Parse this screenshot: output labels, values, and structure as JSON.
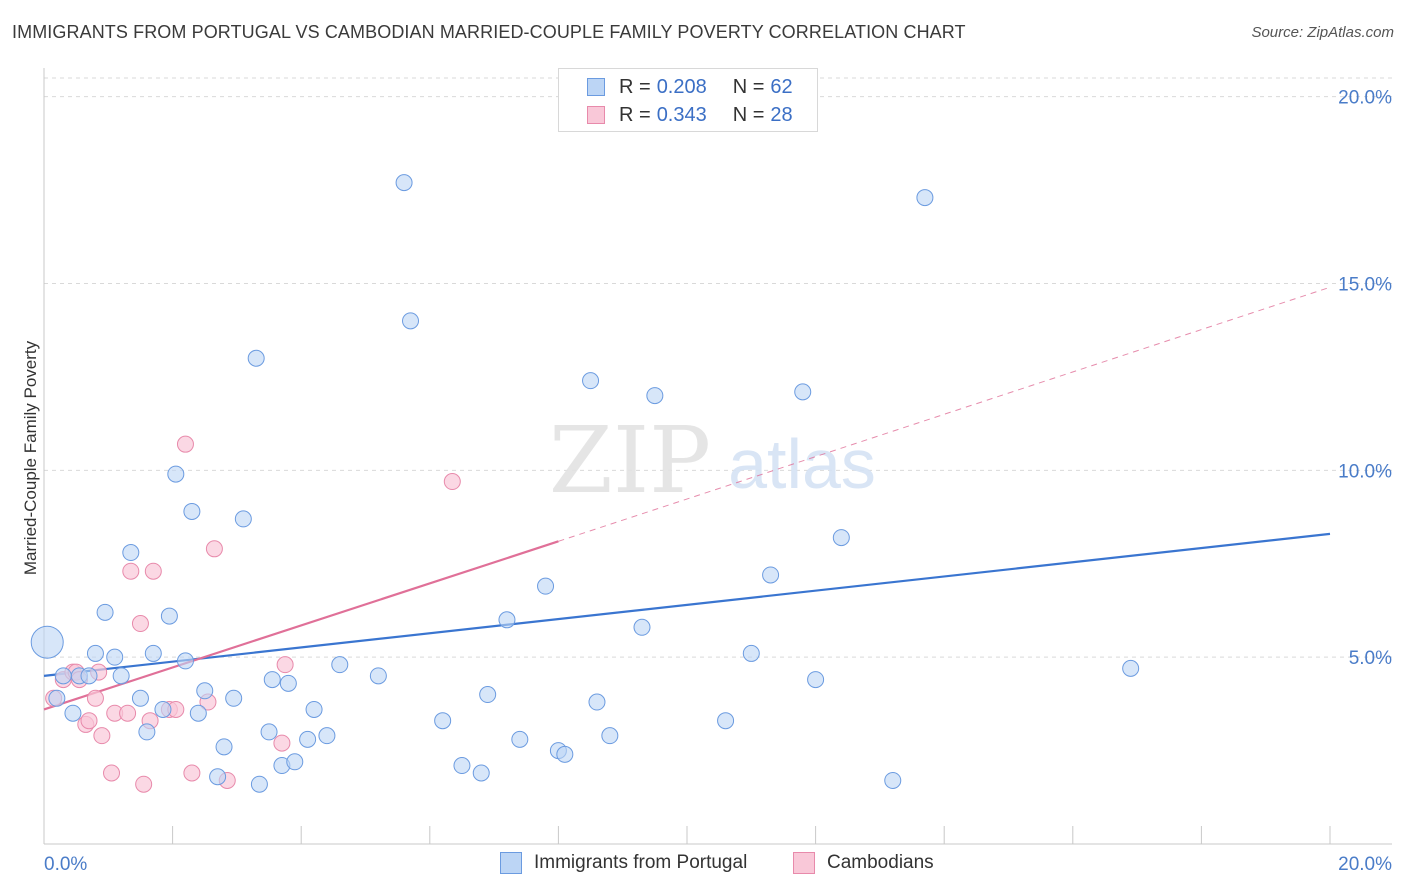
{
  "title": "IMMIGRANTS FROM PORTUGAL VS CAMBODIAN MARRIED-COUPLE FAMILY POVERTY CORRELATION CHART",
  "source": "Source: ZipAtlas.com",
  "watermark": {
    "zip": "ZIP",
    "atlas": "atlas"
  },
  "legend": {
    "rows": [
      {
        "r_label": "R =",
        "r_value": "0.208",
        "n_label": "N =",
        "n_value": "62"
      },
      {
        "r_label": "R =",
        "r_value": "0.343",
        "n_label": "N =",
        "n_value": "28"
      }
    ]
  },
  "bottom_legend": {
    "series1": "Immigrants from Portugal",
    "series2": "Cambodians"
  },
  "colors": {
    "blue_fill": "#bcd5f5",
    "blue_stroke": "#6b9be0",
    "blue_line": "#3a75d0",
    "pink_fill": "#f9c8d8",
    "pink_stroke": "#e88aab",
    "pink_line": "#e07098",
    "grid": "#d9d9d9",
    "label": "#4a7cc8"
  },
  "chart_data": {
    "type": "scatter",
    "title": "IMMIGRANTS FROM PORTUGAL VS CAMBODIAN MARRIED-COUPLE FAMILY POVERTY CORRELATION CHART",
    "xlabel": "",
    "ylabel": "Married-Couple Family Poverty",
    "xlim": [
      0,
      20
    ],
    "ylim": [
      0,
      20.5
    ],
    "x_tick_labels": [
      "0.0%",
      "20.0%"
    ],
    "y_ticks": [
      5,
      10,
      15,
      20
    ],
    "y_tick_labels": [
      "5.0%",
      "10.0%",
      "15.0%",
      "20.0%"
    ],
    "series": [
      {
        "name": "Immigrants from Portugal",
        "R": 0.208,
        "N": 62,
        "trend": {
          "x": [
            0,
            20
          ],
          "y": [
            4.5,
            8.3
          ]
        },
        "points": [
          [
            0.05,
            5.4,
            16
          ],
          [
            0.2,
            3.9,
            8
          ],
          [
            0.3,
            4.5,
            8
          ],
          [
            0.45,
            3.5,
            8
          ],
          [
            0.55,
            4.5,
            8
          ],
          [
            0.7,
            4.5,
            8
          ],
          [
            0.8,
            5.1,
            8
          ],
          [
            0.95,
            6.2,
            8
          ],
          [
            1.1,
            5.0,
            8
          ],
          [
            1.2,
            4.5,
            8
          ],
          [
            1.35,
            7.8,
            8
          ],
          [
            1.5,
            3.9,
            8
          ],
          [
            1.6,
            3.0,
            8
          ],
          [
            1.7,
            5.1,
            8
          ],
          [
            1.85,
            3.6,
            8
          ],
          [
            1.95,
            6.1,
            8
          ],
          [
            2.05,
            9.9,
            8
          ],
          [
            2.2,
            4.9,
            8
          ],
          [
            2.3,
            8.9,
            8
          ],
          [
            2.4,
            3.5,
            8
          ],
          [
            2.5,
            4.1,
            8
          ],
          [
            2.7,
            1.8,
            8
          ],
          [
            2.8,
            2.6,
            8
          ],
          [
            2.95,
            3.9,
            8
          ],
          [
            3.1,
            8.7,
            8
          ],
          [
            3.3,
            13.0,
            8
          ],
          [
            3.35,
            1.6,
            8
          ],
          [
            3.5,
            3.0,
            8
          ],
          [
            3.55,
            4.4,
            8
          ],
          [
            3.7,
            2.1,
            8
          ],
          [
            3.8,
            4.3,
            8
          ],
          [
            3.9,
            2.2,
            8
          ],
          [
            4.1,
            2.8,
            8
          ],
          [
            4.2,
            3.6,
            8
          ],
          [
            4.4,
            2.9,
            8
          ],
          [
            4.6,
            4.8,
            8
          ],
          [
            5.2,
            4.5,
            8
          ],
          [
            5.6,
            17.7,
            8
          ],
          [
            5.7,
            14.0,
            8
          ],
          [
            6.2,
            3.3,
            8
          ],
          [
            6.5,
            2.1,
            8
          ],
          [
            6.8,
            1.9,
            8
          ],
          [
            6.9,
            4.0,
            8
          ],
          [
            7.2,
            6.0,
            8
          ],
          [
            7.4,
            2.8,
            8
          ],
          [
            7.8,
            6.9,
            8
          ],
          [
            8.0,
            2.5,
            8
          ],
          [
            8.1,
            2.4,
            8
          ],
          [
            8.5,
            12.4,
            8
          ],
          [
            8.6,
            3.8,
            8
          ],
          [
            8.8,
            2.9,
            8
          ],
          [
            9.3,
            5.8,
            8
          ],
          [
            9.5,
            12.0,
            8
          ],
          [
            10.6,
            3.3,
            8
          ],
          [
            11.0,
            5.1,
            8
          ],
          [
            11.3,
            7.2,
            8
          ],
          [
            11.8,
            12.1,
            8
          ],
          [
            12.0,
            4.4,
            8
          ],
          [
            12.4,
            8.2,
            8
          ],
          [
            13.2,
            1.7,
            8
          ],
          [
            13.7,
            17.3,
            8
          ],
          [
            16.9,
            4.7,
            8
          ]
        ]
      },
      {
        "name": "Cambodians",
        "R": 0.343,
        "N": 28,
        "trend": {
          "x": [
            0,
            8
          ],
          "y": [
            3.6,
            8.1
          ]
        },
        "trend_ext": {
          "x": [
            8,
            20
          ],
          "y": [
            8.1,
            14.9
          ]
        },
        "points": [
          [
            0.15,
            3.9,
            8
          ],
          [
            0.3,
            4.4,
            8
          ],
          [
            0.45,
            4.6,
            8
          ],
          [
            0.5,
            4.6,
            8
          ],
          [
            0.55,
            4.4,
            8
          ],
          [
            0.65,
            3.2,
            8
          ],
          [
            0.7,
            3.3,
            8
          ],
          [
            0.8,
            3.9,
            8
          ],
          [
            0.85,
            4.6,
            8
          ],
          [
            0.9,
            2.9,
            8
          ],
          [
            1.05,
            1.9,
            8
          ],
          [
            1.1,
            3.5,
            8
          ],
          [
            1.3,
            3.5,
            8
          ],
          [
            1.35,
            7.3,
            8
          ],
          [
            1.5,
            5.9,
            8
          ],
          [
            1.55,
            1.6,
            8
          ],
          [
            1.65,
            3.3,
            8
          ],
          [
            1.7,
            7.3,
            8
          ],
          [
            1.95,
            3.6,
            8
          ],
          [
            2.05,
            3.6,
            8
          ],
          [
            2.2,
            10.7,
            8
          ],
          [
            2.3,
            1.9,
            8
          ],
          [
            2.55,
            3.8,
            8
          ],
          [
            2.65,
            7.9,
            8
          ],
          [
            2.85,
            1.7,
            8
          ],
          [
            3.7,
            2.7,
            8
          ],
          [
            3.75,
            4.8,
            8
          ],
          [
            6.35,
            9.7,
            8
          ]
        ]
      }
    ]
  }
}
